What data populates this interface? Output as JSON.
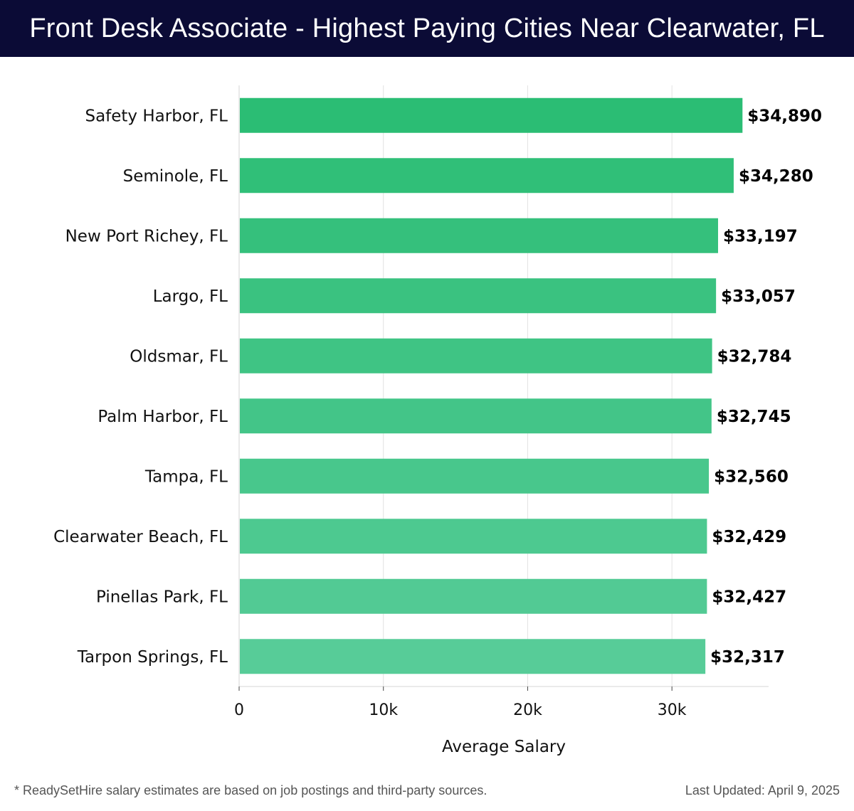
{
  "header": {
    "title": "Front Desk Associate - Highest Paying Cities Near Clearwater, FL"
  },
  "colors": {
    "header_bg": "#0b0b36",
    "bar_top": "#2bbd74",
    "bar_bottom": "#57cc98",
    "grid": "#e2e2e2",
    "label_text": "#111111"
  },
  "chart_data": {
    "type": "bar",
    "orientation": "horizontal",
    "title": "Front Desk Associate - Highest Paying Cities Near Clearwater, FL",
    "xlabel": "Average Salary",
    "ylabel": "",
    "categories": [
      "Safety Harbor, FL",
      "Seminole, FL",
      "New Port Richey, FL",
      "Largo, FL",
      "Oldsmar, FL",
      "Palm Harbor, FL",
      "Tampa, FL",
      "Clearwater Beach, FL",
      "Pinellas Park, FL",
      "Tarpon Springs, FL"
    ],
    "values": [
      34890,
      34280,
      33197,
      33057,
      32784,
      32745,
      32560,
      32429,
      32427,
      32317
    ],
    "value_labels": [
      "$34,890",
      "$34,280",
      "$33,197",
      "$33,057",
      "$32,784",
      "$32,745",
      "$32,560",
      "$32,429",
      "$32,427",
      "$32,317"
    ],
    "xlim": [
      0,
      36700
    ],
    "x_ticks": [
      0,
      10000,
      20000,
      30000
    ],
    "x_tick_labels": [
      "0",
      "10k",
      "20k",
      "30k"
    ],
    "grid": true
  },
  "footer": {
    "note": "* ReadySetHire salary estimates are based on job postings and third-party sources.",
    "updated": "Last Updated: April 9, 2025"
  }
}
